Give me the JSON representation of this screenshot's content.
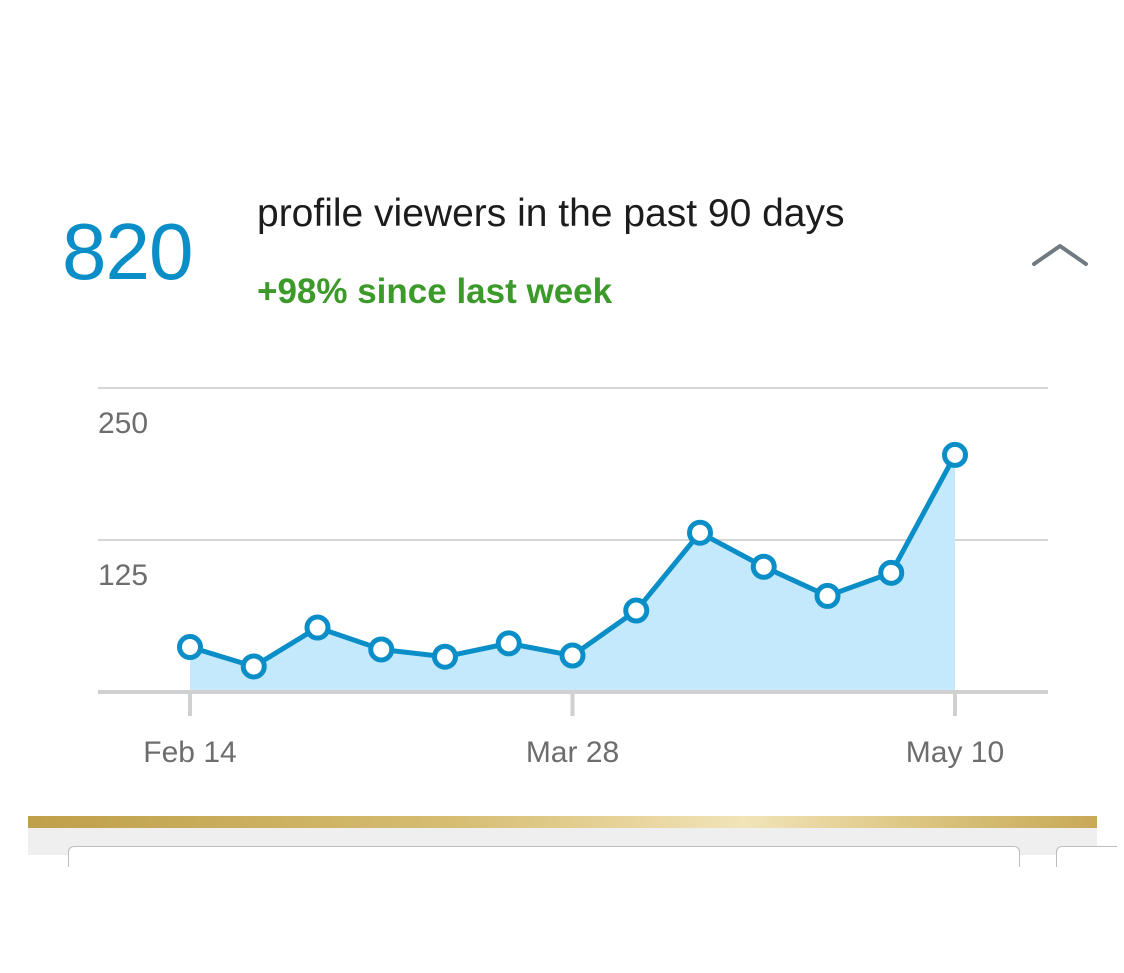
{
  "header": {
    "count": "820",
    "title": "profile viewers in the past 90 days",
    "change": "+98% since last week",
    "collapse_icon": "chevron-up-icon"
  },
  "colors": {
    "accent": "#0a8ec8",
    "positive": "#3c9a2a",
    "fill": "#c4e9fc",
    "gold": "#d6bd72"
  },
  "chart_data": {
    "type": "area",
    "title": "",
    "xlabel": "",
    "ylabel": "",
    "ylim": [
      0,
      250
    ],
    "yticks": [
      {
        "value": 250,
        "label": "250"
      },
      {
        "value": 125,
        "label": "125"
      }
    ],
    "xticks": [
      {
        "index": 0,
        "label": "Feb 14"
      },
      {
        "index": 6,
        "label": "Mar 28"
      },
      {
        "index": 12,
        "label": "May 10"
      }
    ],
    "values": [
      37,
      21,
      53,
      35,
      29,
      40,
      30,
      67,
      131,
      103,
      79,
      98,
      195
    ],
    "grid": true,
    "legend": "none"
  }
}
